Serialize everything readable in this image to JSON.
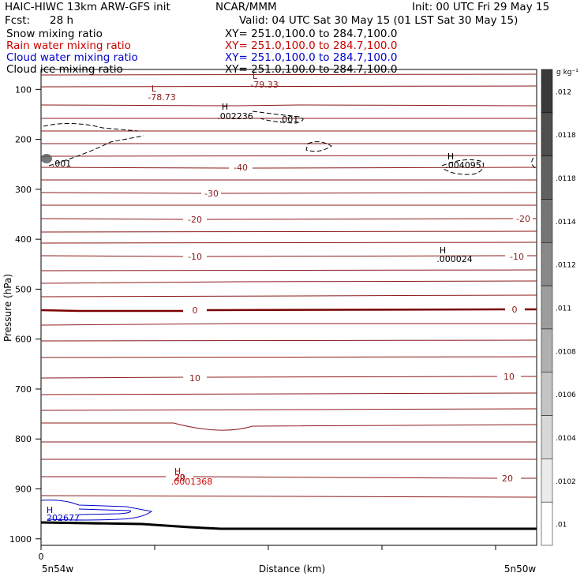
{
  "header": {
    "model": "HAIC-HIWC 13km ARW-GFS init",
    "org": "NCAR/MMM",
    "init": "Init: 00 UTC Fri 29 May 15",
    "fcst_label": "Fcst:",
    "fcst_value": "28 h",
    "valid": "Valid: 04 UTC Sat 30 May 15 (01 LST Sat 30 May 15)"
  },
  "fields": [
    {
      "name": "Snow mixing ratio",
      "xy": "XY= 251.0,100.0 to 284.7,100.0",
      "color": "#000000"
    },
    {
      "name": "Rain water mixing ratio",
      "xy": "XY= 251.0,100.0 to 284.7,100.0",
      "color": "#cc0000"
    },
    {
      "name": "Cloud water mixing ratio",
      "xy": "XY= 251.0,100.0 to 284.7,100.0",
      "color": "#0000cc"
    },
    {
      "name": "Cloud ice mixing ratio",
      "xy": "XY= 251.0,100.0 to 284.7,100.0",
      "color": "#000000"
    }
  ],
  "chart_data": {
    "type": "cross-section contour",
    "ylabel": "Pressure (hPa)",
    "xlabel": "Distance (km)",
    "ylim": [
      1013,
      60
    ],
    "y_ticks": [
      "100",
      "200",
      "300",
      "400",
      "500",
      "600",
      "700",
      "800",
      "900",
      "1000"
    ],
    "x_tick_zero": "0",
    "x_endpoints": [
      "5n54w",
      "5n50w"
    ],
    "temperature_contour_labels": [
      "-40",
      "-30",
      "-20",
      "-20",
      "-10",
      "-10",
      "0",
      "0",
      "10",
      "10",
      "20",
      "20"
    ],
    "extrema": [
      {
        "type": "L",
        "value": "-78.73",
        "color": "#8b1a1a"
      },
      {
        "type": "L",
        "value": "-79.33",
        "color": "#8b1a1a"
      },
      {
        "type": "H",
        "value": ".002236",
        "color": "#000000"
      },
      {
        "type": "H",
        "value": ".004095",
        "color": "#000000"
      },
      {
        "type": "H",
        "value": ".000024",
        "color": "#000000"
      },
      {
        "type": "H",
        "value": ".0001368",
        "color": "#cc0000"
      },
      {
        "type": "H",
        "value": "202677",
        "color": "#0000cc"
      }
    ],
    "small_contour_labels": [
      ".001",
      ".001",
      "20"
    ],
    "colorbar": {
      "unit": "g kg⁻¹",
      "labels": [
        ".012",
        ".0118",
        ".0118",
        ".0114",
        ".0112",
        ".011",
        ".0108",
        ".0106",
        ".0104",
        ".0102",
        ".01"
      ],
      "top_color": "#3a3a3a",
      "bottom_color": "#ffffff"
    },
    "colors": {
      "temperature": "#8b1a1a",
      "freezing_level": "#7a0000",
      "terrain": "#000000"
    }
  }
}
